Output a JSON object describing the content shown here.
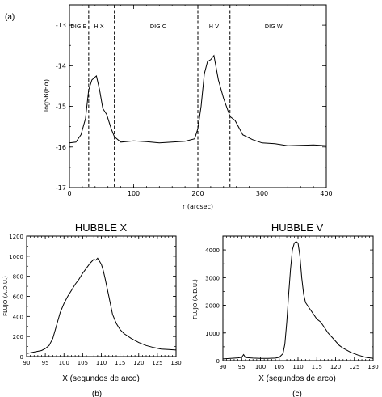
{
  "chart_data": [
    {
      "type": "line",
      "panel_label": "(a)",
      "xlabel": "r (arcsec)",
      "ylabel": "logSB(Hα)",
      "xlim": [
        0,
        400
      ],
      "ylim": [
        -17,
        -12.5
      ],
      "x_ticks": [
        0,
        100,
        200,
        300,
        400
      ],
      "y_ticks": [
        -13,
        -14,
        -15,
        -16,
        -17
      ],
      "region_boundaries": [
        30,
        70,
        200,
        250
      ],
      "region_labels": [
        {
          "text": "DIG E",
          "x": 14
        },
        {
          "text": "H X",
          "x": 46
        },
        {
          "text": "DIG C",
          "x": 138
        },
        {
          "text": "H V",
          "x": 225
        },
        {
          "text": "DIG W",
          "x": 318
        }
      ],
      "series": [
        {
          "x": [
            0,
            10,
            18,
            25,
            30,
            35,
            42,
            47,
            52,
            58,
            65,
            70,
            80,
            100,
            120,
            140,
            160,
            180,
            195,
            200,
            205,
            210,
            215,
            220,
            225,
            232,
            240,
            250,
            258,
            270,
            285,
            300,
            320,
            340,
            360,
            380,
            400
          ],
          "y": [
            -15.9,
            -15.88,
            -15.7,
            -15.3,
            -14.6,
            -14.35,
            -14.25,
            -14.6,
            -15.05,
            -15.2,
            -15.55,
            -15.75,
            -15.88,
            -15.85,
            -15.87,
            -15.9,
            -15.88,
            -15.86,
            -15.8,
            -15.55,
            -15.0,
            -14.2,
            -13.9,
            -13.85,
            -13.75,
            -14.35,
            -14.8,
            -15.25,
            -15.35,
            -15.7,
            -15.82,
            -15.9,
            -15.92,
            -15.97,
            -15.96,
            -15.95,
            -15.97
          ]
        }
      ]
    },
    {
      "type": "line",
      "panel_label": "(b)",
      "title": "HUBBLE X",
      "xlabel": "X (segundos de arco)",
      "ylabel": "FLUJO (A.D.U.)",
      "xlim": [
        90,
        130
      ],
      "ylim": [
        0,
        1200
      ],
      "x_ticks": [
        90,
        95,
        100,
        105,
        110,
        115,
        120,
        125,
        130
      ],
      "y_ticks": [
        0,
        200,
        400,
        600,
        800,
        1000,
        1200
      ],
      "series": [
        {
          "x": [
            90,
            92,
            94,
            95,
            96,
            97,
            98,
            99,
            100,
            101,
            102,
            103,
            104,
            105,
            106,
            107,
            108,
            108.5,
            109,
            109.5,
            110,
            110.5,
            111,
            112,
            113,
            114,
            115,
            116,
            118,
            120,
            122,
            124,
            126,
            128,
            130
          ],
          "y": [
            30,
            45,
            60,
            80,
            110,
            180,
            310,
            440,
            530,
            600,
            660,
            720,
            770,
            830,
            880,
            930,
            970,
            960,
            980,
            950,
            920,
            860,
            780,
            600,
            420,
            330,
            270,
            230,
            180,
            140,
            110,
            90,
            75,
            70,
            65
          ]
        }
      ]
    },
    {
      "type": "line",
      "panel_label": "(c)",
      "title": "HUBBLE V",
      "xlabel": "X (segundos de arco)",
      "ylabel": "FLUJO (A.D.U.)",
      "xlim": [
        90,
        130
      ],
      "ylim": [
        0,
        4500
      ],
      "x_ticks": [
        90,
        95,
        100,
        105,
        110,
        115,
        120,
        125,
        130
      ],
      "y_ticks": [
        0,
        1000,
        2000,
        3000,
        4000
      ],
      "series": [
        {
          "x": [
            90,
            92,
            94,
            95,
            95.5,
            96,
            98,
            100,
            102,
            104,
            105,
            106,
            106.5,
            107,
            107.5,
            108,
            108.5,
            109,
            109.5,
            110,
            110.5,
            111,
            111.5,
            112,
            113,
            114,
            115,
            116,
            117,
            118,
            119,
            120,
            121,
            122,
            124,
            126,
            128,
            130
          ],
          "y": [
            60,
            80,
            100,
            120,
            220,
            110,
            90,
            80,
            80,
            90,
            120,
            250,
            600,
            1400,
            2400,
            3300,
            4000,
            4250,
            4300,
            4250,
            3800,
            3000,
            2400,
            2100,
            1900,
            1700,
            1500,
            1400,
            1200,
            1000,
            850,
            700,
            550,
            450,
            300,
            200,
            120,
            80
          ]
        }
      ]
    }
  ]
}
